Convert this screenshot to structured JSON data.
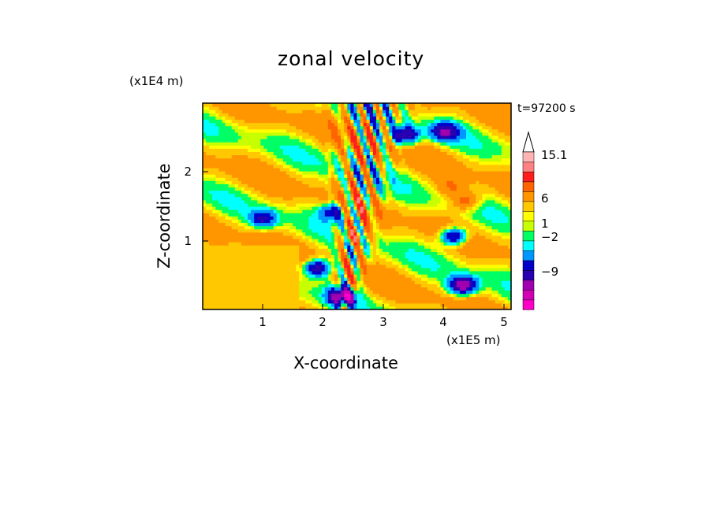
{
  "title": "zonal velocity",
  "time_label": "t=97200 s",
  "x_axis": {
    "label": "X-coordinate",
    "exponent": "(x1E5 m)",
    "ticks": [
      "1",
      "2",
      "3",
      "4",
      "5"
    ]
  },
  "z_axis": {
    "label": "Z-coordinate",
    "exponent": "(x1E4 m)",
    "ticks": [
      "1",
      "2"
    ]
  },
  "colorbar": {
    "labels": [
      "15.1",
      "6",
      "1",
      "−2",
      "−9"
    ],
    "colors": [
      "#ff00c8",
      "#d200b4",
      "#a000b0",
      "#2800b0",
      "#0000c8",
      "#0096ff",
      "#00ffff",
      "#00ff64",
      "#c8ff00",
      "#ffff00",
      "#ffc800",
      "#ff9600",
      "#ff6400",
      "#ff1e1e",
      "#ff8282",
      "#ffb4b4"
    ]
  },
  "chart_data": {
    "type": "heatmap",
    "title": "zonal velocity",
    "xlabel": "X-coordinate (x1E5 m)",
    "ylabel": "Z-coordinate (x1E4 m)",
    "xlim": [
      0,
      5.1
    ],
    "ylim": [
      0,
      2.95
    ],
    "time": "t=97200 s",
    "colorbar_levels": [
      -15,
      -12,
      -9,
      -6,
      -4,
      -2,
      -1,
      0,
      0.5,
      1,
      2,
      4,
      6,
      9,
      12,
      15.1
    ],
    "colorbar_labels": [
      "15.1",
      "6",
      "1",
      "−2",
      "−9"
    ],
    "features": [
      {
        "x": 0.7,
        "z": 0.5,
        "value": 1.5
      },
      {
        "x": 1.0,
        "z": 1.3,
        "value": -6
      },
      {
        "x": 1.9,
        "z": 0.6,
        "value": -9
      },
      {
        "x": 2.3,
        "z": 0.2,
        "value": -12
      },
      {
        "x": 2.45,
        "z": 1.05,
        "value": 6
      },
      {
        "x": 2.15,
        "z": 1.4,
        "value": -6
      },
      {
        "x": 3.35,
        "z": 2.5,
        "value": -9
      },
      {
        "x": 4.15,
        "z": 1.05,
        "value": -9
      },
      {
        "x": 4.3,
        "z": 0.35,
        "value": -12
      },
      {
        "x": 4.35,
        "z": 1.55,
        "value": 6
      },
      {
        "x": 4.0,
        "z": 2.55,
        "value": -9
      },
      {
        "x": 4.1,
        "z": 1.75,
        "value": 4
      }
    ]
  }
}
